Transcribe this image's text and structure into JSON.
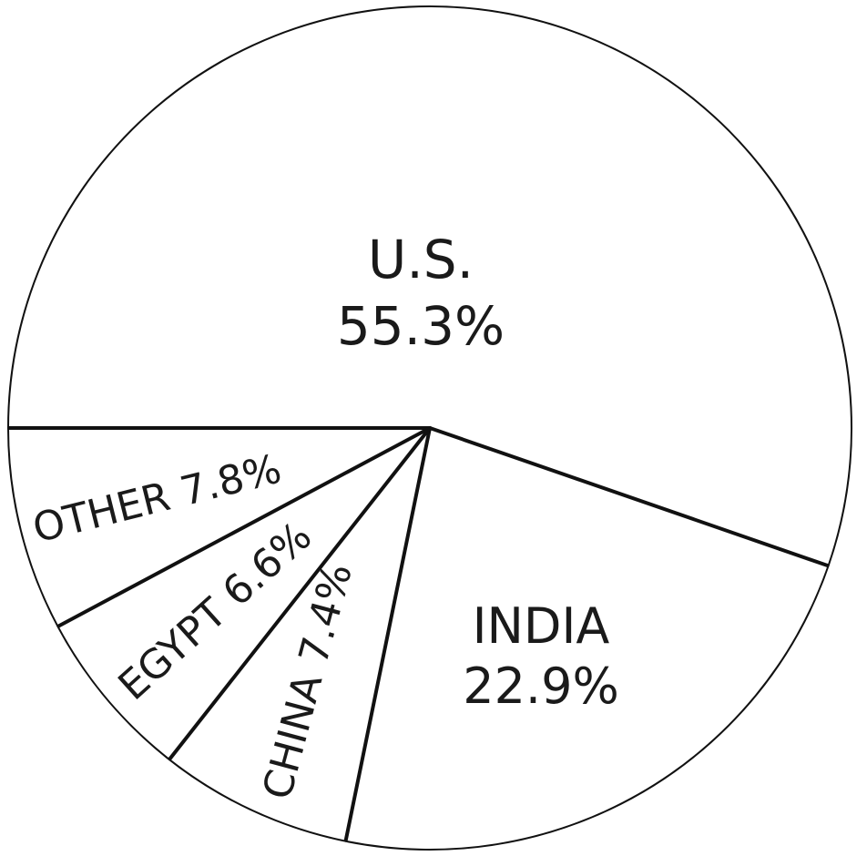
{
  "chart_data": {
    "type": "pie",
    "slices": [
      {
        "name": "U.S.",
        "value": 55.3,
        "label_line1": "U.S.",
        "label_line2": "55.3%"
      },
      {
        "name": "INDIA",
        "value": 22.9,
        "label_line1": "INDIA",
        "label_line2": "22.9%"
      },
      {
        "name": "CHINA",
        "value": 7.4,
        "label": "CHINA 7.4%"
      },
      {
        "name": "EGYPT",
        "value": 6.6,
        "label": "EGYPT 6.6%"
      },
      {
        "name": "OTHER",
        "value": 7.8,
        "label": "OTHER 7.8%"
      }
    ],
    "legend": "none",
    "colors": {
      "stroke": "#111111",
      "fill": "#ffffff"
    }
  }
}
